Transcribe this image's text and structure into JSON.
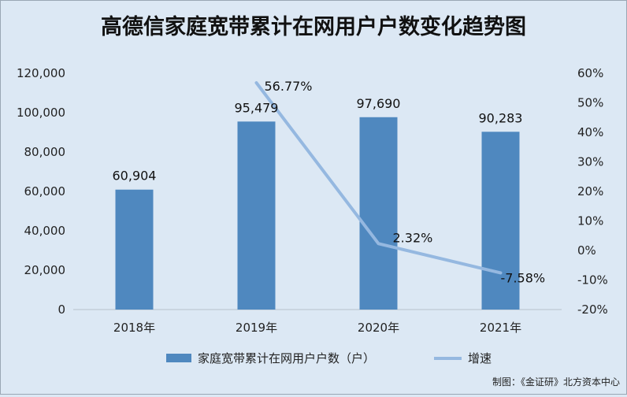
{
  "chart_data": {
    "type": "bar",
    "title": "高德信家庭宽带累计在网用户户数变化趋势图",
    "categories": [
      "2018年",
      "2019年",
      "2020年",
      "2021年"
    ],
    "series": [
      {
        "name": "家庭宽带累计在网用户户数（户）",
        "type": "bar",
        "axis": "left",
        "values": [
          60904,
          95479,
          97690,
          90283
        ],
        "labels": [
          "60,904",
          "95,479",
          "97,690",
          "90,283"
        ]
      },
      {
        "name": "增速",
        "type": "line",
        "axis": "right",
        "values": [
          null,
          56.77,
          2.32,
          -7.58
        ],
        "labels": [
          "",
          "56.77%",
          "2.32%",
          "-7.58%"
        ]
      }
    ],
    "y_left": {
      "min": 0,
      "max": 120000,
      "step": 20000,
      "ticks": [
        "0",
        "20,000",
        "40,000",
        "60,000",
        "80,000",
        "100,000",
        "120,000"
      ]
    },
    "y_right": {
      "min": -20,
      "max": 60,
      "step": 10,
      "ticks": [
        "-20%",
        "-10%",
        "0%",
        "10%",
        "20%",
        "30%",
        "40%",
        "50%",
        "60%"
      ]
    },
    "grid": false,
    "legend": "bottom",
    "source": "制图：《金证研》北方资本中心"
  },
  "colors": {
    "bar": "#4f88bf",
    "line": "#95b8e0",
    "background": "#dce8f4"
  }
}
